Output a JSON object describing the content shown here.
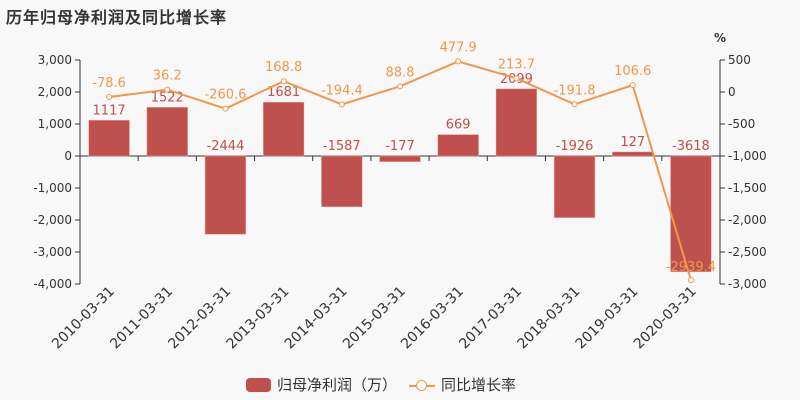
{
  "title": "历年归母净利润及同比增长率",
  "right_axis_unit": "%",
  "legend": {
    "bar_label": "归母净利润（万）",
    "line_label": "同比增长率"
  },
  "colors": {
    "bar": "#c0504d",
    "line": "#f0974a",
    "axis": "#333333",
    "background": "#f8f8f8"
  },
  "chart_data": {
    "type": "bar+line",
    "title": "历年归母净利润及同比增长率",
    "categories": [
      "2010-03-31",
      "2011-03-31",
      "2012-03-31",
      "2013-03-31",
      "2014-03-31",
      "2015-03-31",
      "2016-03-31",
      "2017-03-31",
      "2018-03-31",
      "2019-03-31",
      "2020-03-31"
    ],
    "series": [
      {
        "name": "归母净利润（万）",
        "type": "bar",
        "axis": "left",
        "values": [
          1117,
          1522,
          -2444,
          1681,
          -1587,
          -177,
          669,
          2099,
          -1926,
          127,
          -3618
        ]
      },
      {
        "name": "同比增长率",
        "type": "line",
        "axis": "right",
        "values": [
          -78.6,
          36.2,
          -260.6,
          168.8,
          -194.4,
          88.8,
          477.9,
          213.7,
          -191.8,
          106.6,
          -2939.4
        ]
      }
    ],
    "left_axis": {
      "ylim": [
        -4000,
        3000
      ],
      "ticks": [
        "3,000",
        "2,000",
        "1,000",
        "0",
        "-1,000",
        "-2,000",
        "-3,000",
        "-4,000"
      ]
    },
    "right_axis": {
      "label": "%",
      "ylim": [
        -3000,
        500
      ],
      "ticks": [
        "500",
        "0",
        "-500",
        "-1,000",
        "-1,500",
        "-2,000",
        "-2,500",
        "-3,000"
      ]
    },
    "legend_position": "bottom",
    "grid": false
  }
}
